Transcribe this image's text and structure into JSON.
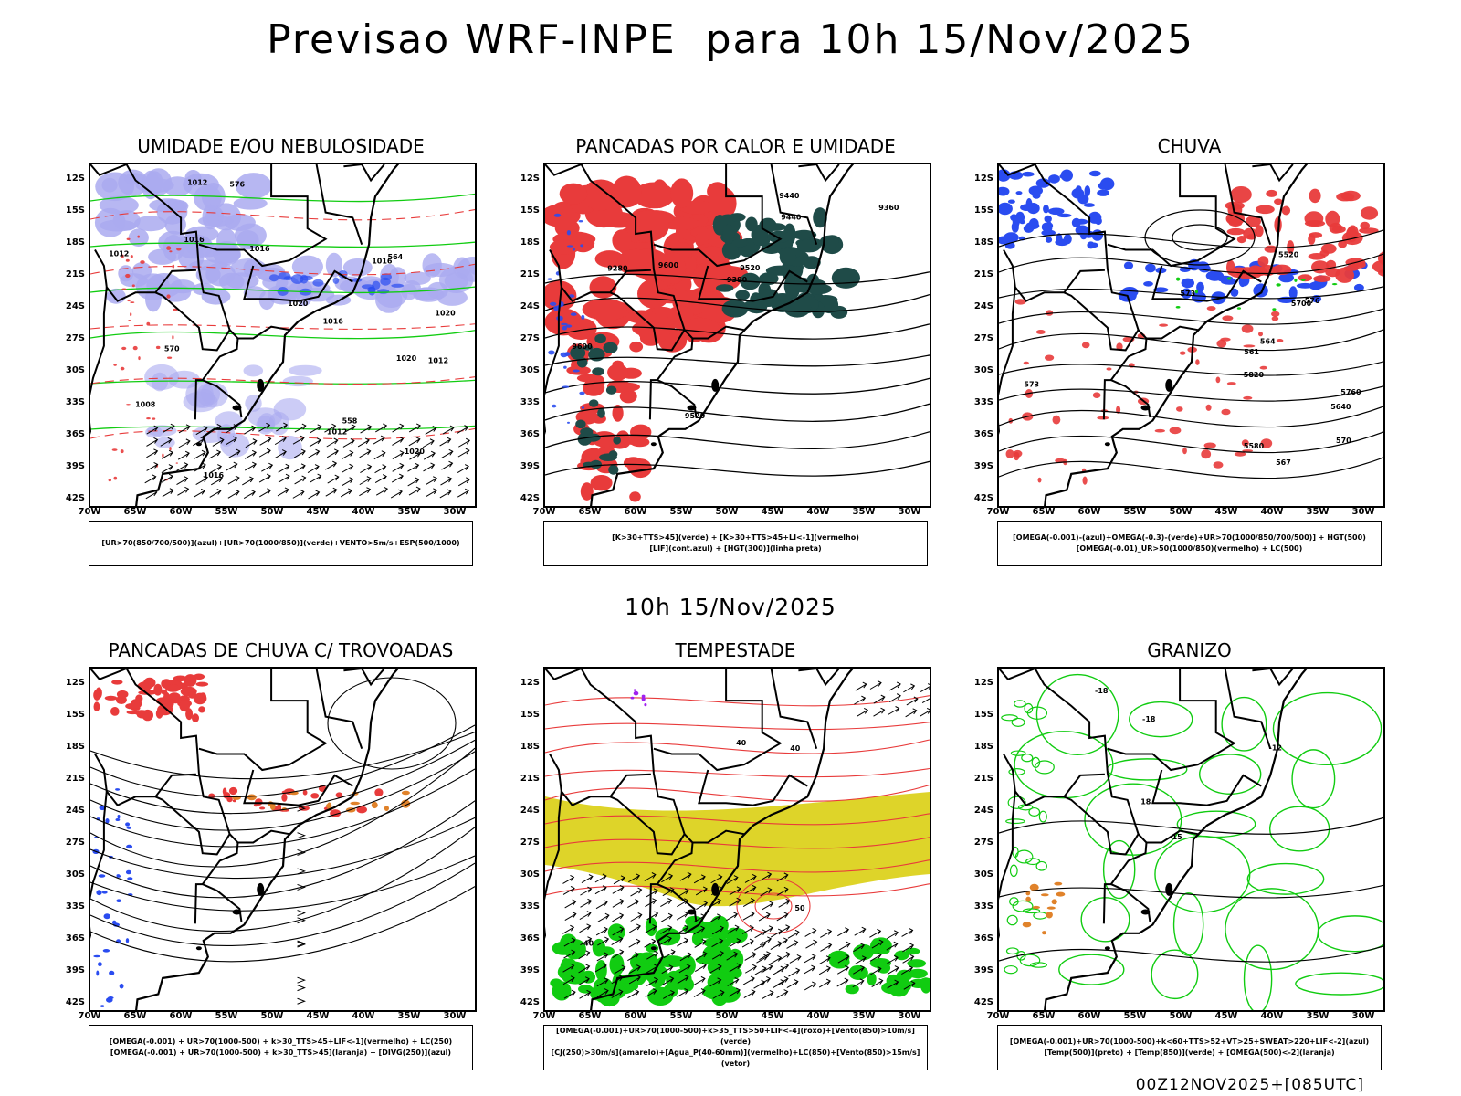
{
  "header": {
    "title": "Previsao WRF-INPE  para 10h 15/Nov/2025",
    "mid_label": "10h 15/Nov/2025",
    "run_label": "00Z12NOV2025+[085UTC]"
  },
  "axes": {
    "lat_labels": [
      "12S",
      "15S",
      "18S",
      "21S",
      "24S",
      "27S",
      "30S",
      "33S",
      "36S",
      "39S",
      "42S"
    ],
    "lon_labels": [
      "70W",
      "65W",
      "60W",
      "55W",
      "50W",
      "45W",
      "40W",
      "35W",
      "30W"
    ]
  },
  "colors": {
    "red": "#e83b3b",
    "blue": "#2a4cf0",
    "green": "#11cc11",
    "lavender": "#aaaaf0",
    "darkteal": "#1f4b48",
    "orange": "#e0822a",
    "yellow": "#dcd21e",
    "purple": "#a020f0"
  },
  "panels": [
    {
      "title": "UMIDADE E/OU NEBULOSIDADE",
      "legend": [
        "[UR>70(850/700/500)](azul)+[UR>70(1000/850)](verde)+VENTO>5m/s+ESP(500/1000)"
      ],
      "contour_labels": [
        "1012",
        "1012",
        "1016",
        "1016",
        "1016",
        "1016",
        "1020",
        "1020",
        "1020",
        "1016",
        "1012",
        "1012",
        "1008",
        "1020",
        "576",
        "570",
        "564",
        "558"
      ]
    },
    {
      "title": "PANCADAS POR CALOR E UMIDADE",
      "legend": [
        "[K>30+TTS>45](verde) + [K>30+TTS>45+LI<-1](vermelho)",
        "[LIF](cont.azul) + [HGT(300)](linha preta)"
      ],
      "contour_labels": [
        "9600",
        "9600",
        "9520",
        "9440",
        "9440",
        "9360",
        "9280",
        "9380",
        "9520"
      ]
    },
    {
      "title": "CHUVA",
      "legend": [
        "[OMEGA(-0.001)-(azul)+OMEGA(-0.3)-(verde)+UR>70(1000/850/700/500)] + HGT(500)",
        "[OMEGA(-0.01)_UR>50(1000/850)(vermelho) + LC(500)"
      ],
      "contour_labels": [
        "5820",
        "5760",
        "5700",
        "5640",
        "5580",
        "5520",
        "576",
        "573",
        "570",
        "567",
        "564",
        "561",
        "573"
      ]
    },
    {
      "title": "PANCADAS DE CHUVA C/ TROVOADAS",
      "legend": [
        "[OMEGA(-0.001) + UR>70(1000-500) + k>30_TTS>45+LIF<-1](vermelho) + LC(250)",
        "[OMEGA(-0.001) + UR>70(1000-500) + k>30_TTS>45](laranja) + [DIVG(250)](azul)"
      ],
      "contour_labels": []
    },
    {
      "title": "TEMPESTADE",
      "legend": [
        "[OMEGA(-0.001)+UR>70(1000-500)+k>35_TTS>50+LIF<-4](roxo)+[Vento(850)>10m/s](verde)",
        "[CJ(250)>30m/s](amarelo)+[Agua_P(40-60mm)](vermelho)+LC(850)+[Vento(850)>15m/s](vetor)"
      ],
      "contour_labels": [
        "40",
        "40",
        "50",
        "40"
      ]
    },
    {
      "title": "GRANIZO",
      "legend": [
        "[OMEGA(-0.001)+UR>70(1000-500)+k<60+TTS>52+VT>25+SWEAT>220+LIF<-2](azul)",
        "[Temp(500)](preto) + [Temp(850)](verde) + [OMEGA(500)<-2](laranja)"
      ],
      "contour_labels": [
        "-12",
        "-15",
        "-18",
        "-18",
        "18"
      ]
    }
  ]
}
